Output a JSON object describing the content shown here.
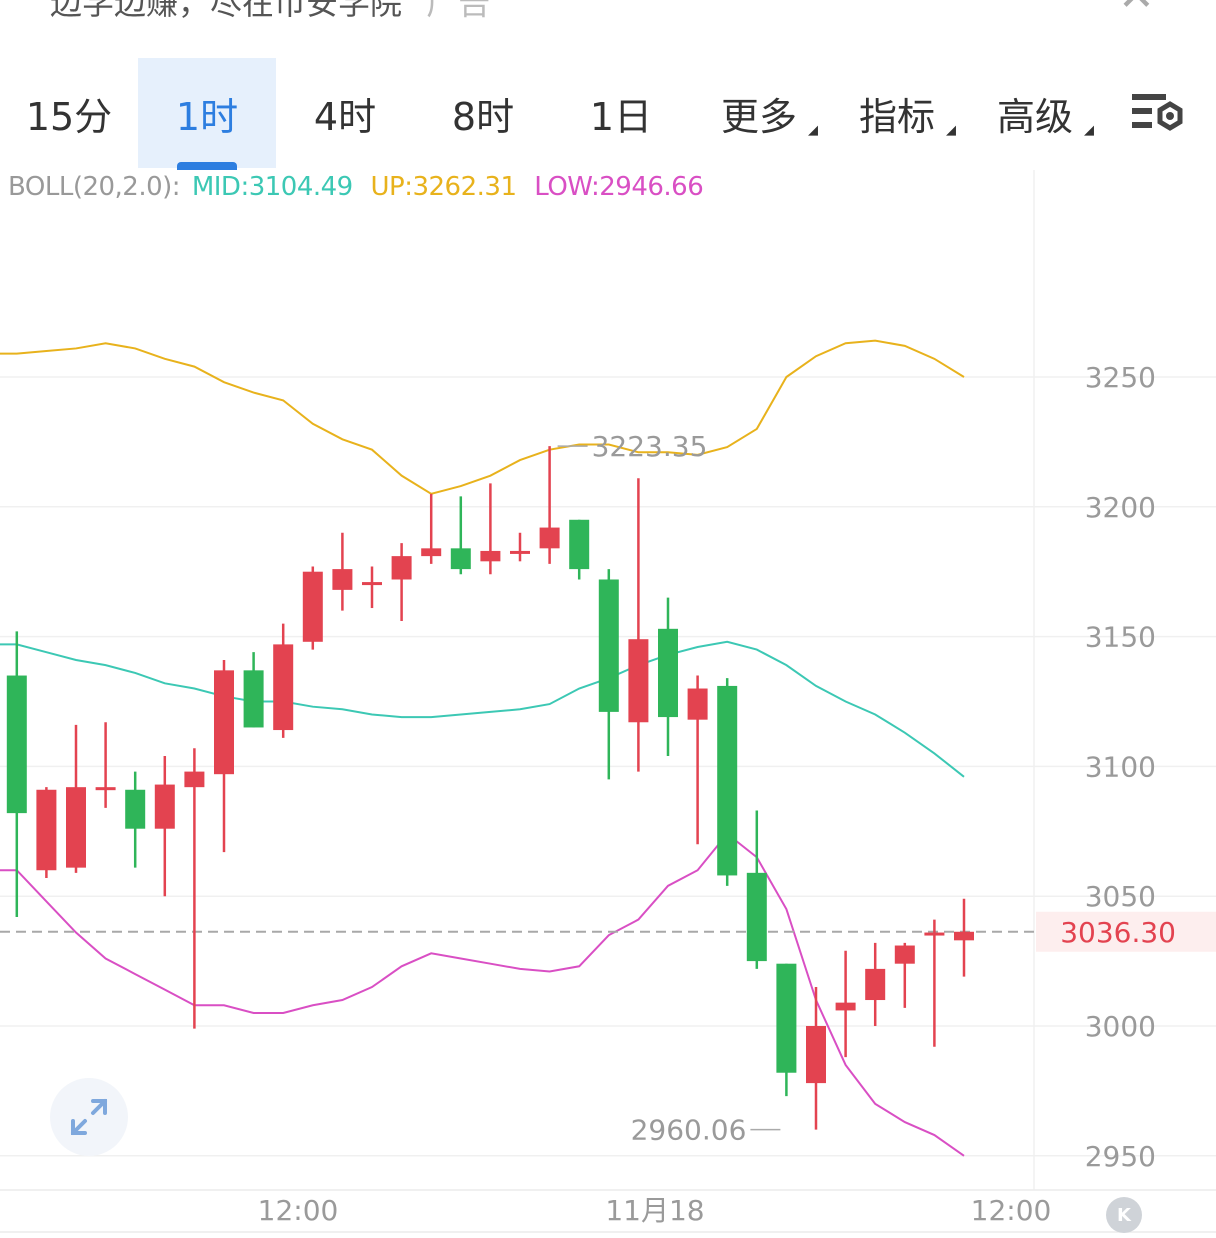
{
  "header": {
    "title": "边学边赚，尽在币安学院",
    "suffix": "广告"
  },
  "timeframes": [
    {
      "label": "15分"
    },
    {
      "label": "1时"
    },
    {
      "label": "4时"
    },
    {
      "label": "8时"
    },
    {
      "label": "1日"
    },
    {
      "label": "更多"
    },
    {
      "label": "指标"
    },
    {
      "label": "高级"
    }
  ],
  "active_timeframe": "1时",
  "indicator": {
    "name": "BOLL(20,2.0):",
    "mid": "MID:3104.49",
    "up": "UP:3262.31",
    "low": "LOW:2946.66"
  },
  "colors": {
    "up": "#e34350",
    "down": "#2fb559",
    "mid": "#3cc8b4",
    "upper": "#e8b21c",
    "lower": "#d94fc4",
    "accent": "#2d7ee0"
  },
  "chart_data": {
    "type": "candlestick",
    "y_axis_labels": [
      "3250",
      "3200",
      "3150",
      "3100",
      "3050",
      "3000",
      "2950"
    ],
    "x_axis_labels": [
      "12:00",
      "11月18",
      "12:00"
    ],
    "current_price": "3036.30",
    "high_marker": "3223.35",
    "low_marker": "2960.06",
    "candles": [
      {
        "o": 3135,
        "c": 3082,
        "h": 3152,
        "l": 3042
      },
      {
        "o": 3060,
        "c": 3091,
        "h": 3092,
        "l": 3057
      },
      {
        "o": 3061,
        "c": 3092,
        "h": 3116,
        "l": 3059
      },
      {
        "o": 3092,
        "c": 3092,
        "h": 3117,
        "l": 3084
      },
      {
        "o": 3091,
        "c": 3076,
        "h": 3098,
        "l": 3061
      },
      {
        "o": 3076,
        "c": 3093,
        "h": 3104,
        "l": 3050
      },
      {
        "o": 3092,
        "c": 3098,
        "h": 3107,
        "l": 2999
      },
      {
        "o": 3097,
        "c": 3137,
        "h": 3141,
        "l": 3067
      },
      {
        "o": 3137,
        "c": 3115,
        "h": 3144,
        "l": 3115
      },
      {
        "o": 3114,
        "c": 3147,
        "h": 3155,
        "l": 3111
      },
      {
        "o": 3148,
        "c": 3175,
        "h": 3177,
        "l": 3145
      },
      {
        "o": 3168,
        "c": 3176,
        "h": 3190,
        "l": 3160
      },
      {
        "o": 3171,
        "c": 3171,
        "h": 3177,
        "l": 3161
      },
      {
        "o": 3172,
        "c": 3181,
        "h": 3186,
        "l": 3156
      },
      {
        "o": 3181,
        "c": 3184,
        "h": 3205,
        "l": 3178
      },
      {
        "o": 3184,
        "c": 3176,
        "h": 3204,
        "l": 3174
      },
      {
        "o": 3179,
        "c": 3183,
        "h": 3209,
        "l": 3174
      },
      {
        "o": 3182,
        "c": 3183,
        "h": 3190,
        "l": 3179
      },
      {
        "o": 3184,
        "c": 3192,
        "h": 3223.35,
        "l": 3178
      },
      {
        "o": 3195,
        "c": 3176,
        "h": 3195,
        "l": 3172
      },
      {
        "o": 3172,
        "c": 3121,
        "h": 3176,
        "l": 3095
      },
      {
        "o": 3117,
        "c": 3149,
        "h": 3211,
        "l": 3098
      },
      {
        "o": 3153,
        "c": 3119,
        "h": 3165,
        "l": 3104
      },
      {
        "o": 3118,
        "c": 3130,
        "h": 3135,
        "l": 3070
      },
      {
        "o": 3131,
        "c": 3058,
        "h": 3134,
        "l": 3054
      },
      {
        "o": 3059,
        "c": 3025,
        "h": 3083,
        "l": 3022
      },
      {
        "o": 3024,
        "c": 2982,
        "h": 3024,
        "l": 2973
      },
      {
        "o": 2978,
        "c": 3000,
        "h": 3015,
        "l": 2960.06
      },
      {
        "o": 3006,
        "c": 3009,
        "h": 3029,
        "l": 2988
      },
      {
        "o": 3010,
        "c": 3022,
        "h": 3032,
        "l": 3000
      },
      {
        "o": 3024,
        "c": 3031,
        "h": 3032,
        "l": 3007
      },
      {
        "o": 3035,
        "c": 3036,
        "h": 3041,
        "l": 2992
      },
      {
        "o": 3033,
        "c": 3036.3,
        "h": 3049,
        "l": 3019
      }
    ],
    "boll_up": [
      3259,
      3260,
      3261,
      3263,
      3261,
      3257,
      3254,
      3248,
      3244,
      3241,
      3232,
      3226,
      3222,
      3212,
      3205,
      3208,
      3212,
      3218,
      3222,
      3224,
      3224,
      3221,
      3221,
      3220,
      3223,
      3230,
      3250,
      3258,
      3263,
      3264,
      3262,
      3257,
      3250
    ],
    "boll_mid": [
      3147,
      3144,
      3141,
      3139,
      3136,
      3132,
      3130,
      3127,
      3125,
      3125,
      3123,
      3122,
      3120,
      3119,
      3119,
      3120,
      3121,
      3122,
      3124,
      3130,
      3134,
      3139,
      3143,
      3146,
      3148,
      3145,
      3139,
      3131,
      3125,
      3120,
      3113,
      3105,
      3096
    ],
    "boll_low": [
      3060,
      3048,
      3036,
      3026,
      3020,
      3014,
      3008,
      3008,
      3005,
      3005,
      3008,
      3010,
      3015,
      3023,
      3028,
      3026,
      3024,
      3022,
      3021,
      3023,
      3035,
      3041,
      3054,
      3060,
      3074,
      3065,
      3045,
      3010,
      2985,
      2970,
      2963,
      2958,
      2950
    ]
  }
}
